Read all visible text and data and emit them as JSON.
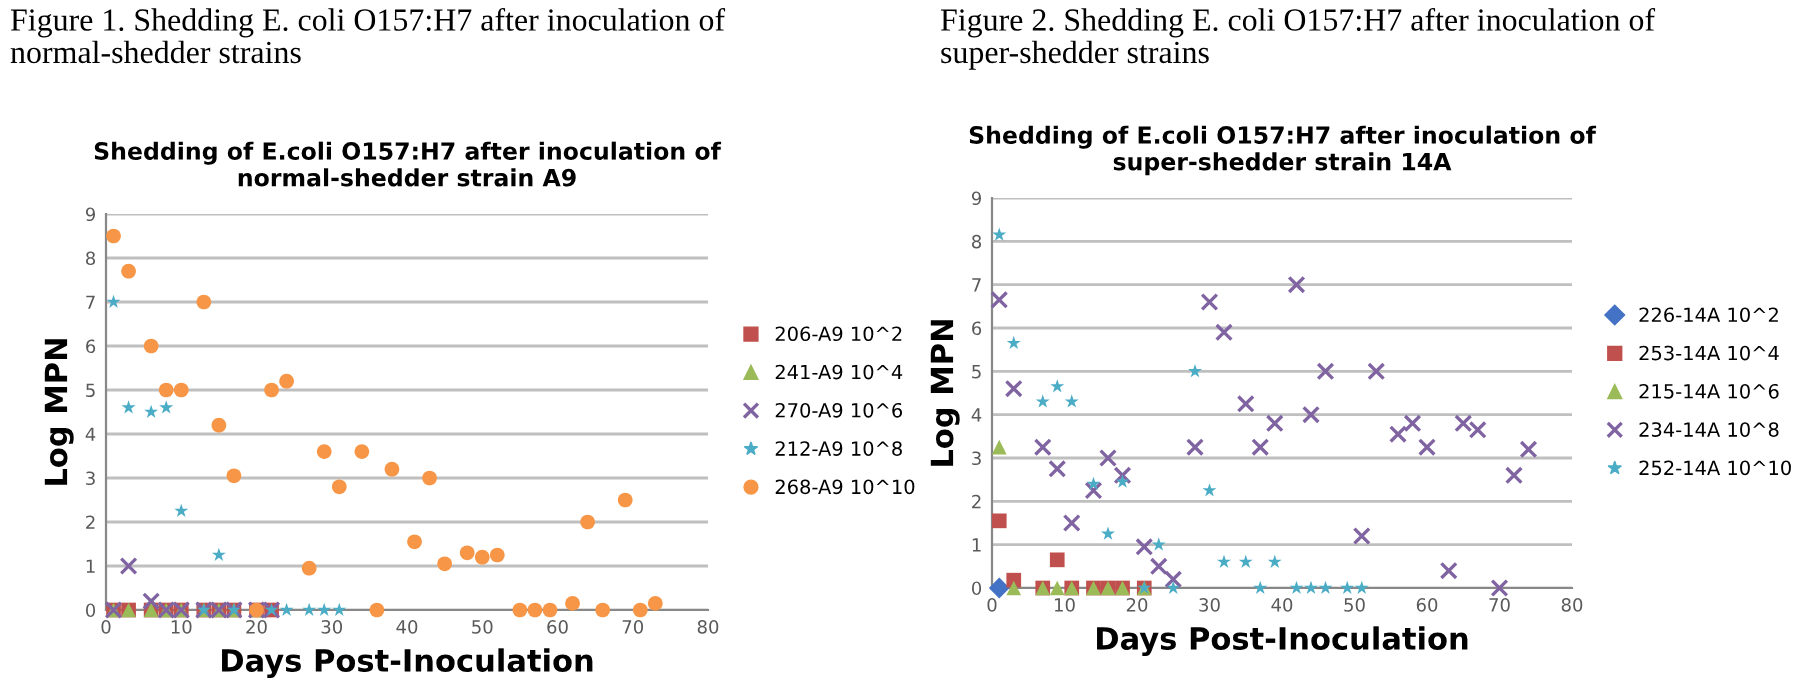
{
  "chart_data": [
    {
      "type": "scatter",
      "title": "Shedding of E.coli O157:H7 after inoculation of\nnormal-shedder strain A9",
      "annotations": [
        "Figure 1. Shedding E. coli O157:H7 after inoculation of\nnormal-shedder strains"
      ],
      "xlabel": "Days Post-Inoculation",
      "ylabel": "Log MPN",
      "xlim": [
        0,
        80
      ],
      "xticks": [
        0,
        10,
        20,
        30,
        40,
        50,
        60,
        70,
        80
      ],
      "ylim": [
        0,
        9
      ],
      "yticks": [
        0,
        1,
        2,
        3,
        4,
        5,
        6,
        7,
        8,
        9
      ],
      "grid": "y",
      "legend": "right",
      "series": [
        {
          "name": "206-A9 10^2",
          "color": "#c0504d",
          "marker": "square",
          "x": [
            1,
            3,
            6,
            8,
            10,
            13,
            15,
            17,
            20,
            22
          ],
          "values": [
            0,
            0,
            0,
            0,
            0,
            0,
            0,
            0,
            0,
            0
          ]
        },
        {
          "name": "241-A9 10^4",
          "color": "#9bbb59",
          "marker": "triangle",
          "x": [
            1,
            3,
            6,
            8,
            10,
            13,
            15,
            17,
            20
          ],
          "values": [
            0,
            0,
            0,
            0,
            0,
            0,
            0,
            0,
            0
          ]
        },
        {
          "name": "270-A9 10^6",
          "color": "#8064a2",
          "marker": "cross",
          "x": [
            1,
            3,
            6,
            8,
            10,
            13,
            15,
            17,
            20,
            22
          ],
          "values": [
            0,
            1.0,
            0.2,
            0,
            0,
            0,
            0,
            0,
            0,
            0
          ]
        },
        {
          "name": "212-A9 10^8",
          "color": "#4bacc6",
          "marker": "star",
          "x": [
            1,
            3,
            6,
            8,
            10,
            13,
            15,
            17,
            22,
            24,
            27,
            29,
            31
          ],
          "values": [
            7.0,
            4.6,
            4.5,
            4.6,
            2.25,
            0,
            1.25,
            0,
            0,
            0,
            0,
            0,
            0
          ]
        },
        {
          "name": "268-A9 10^10",
          "color": "#f79646",
          "marker": "circle",
          "x": [
            1,
            3,
            6,
            8,
            10,
            13,
            15,
            17,
            20,
            22,
            24,
            27,
            29,
            31,
            34,
            36,
            38,
            41,
            43,
            45,
            48,
            50,
            52,
            55,
            57,
            59,
            62,
            64,
            66,
            69,
            71,
            73
          ],
          "values": [
            8.5,
            7.7,
            6.0,
            5.0,
            5.0,
            7.0,
            4.2,
            3.05,
            0,
            5.0,
            5.2,
            0.95,
            3.6,
            2.8,
            3.6,
            0,
            3.2,
            1.55,
            3.0,
            1.05,
            1.3,
            1.2,
            1.25,
            0,
            0,
            0,
            0.15,
            2.0,
            0,
            2.5,
            0,
            0.15
          ]
        }
      ]
    },
    {
      "type": "scatter",
      "title": "Shedding of E.coli O157:H7 after inoculation of\nsuper-shedder strain 14A",
      "annotations": [
        "Figure 2. Shedding E. coli O157:H7 after inoculation of\nsuper-shedder strains"
      ],
      "xlabel": "Days Post-Inoculation",
      "ylabel": "Log MPN",
      "xlim": [
        0,
        80
      ],
      "xticks": [
        0,
        10,
        20,
        30,
        40,
        50,
        60,
        70,
        80
      ],
      "ylim": [
        0,
        9
      ],
      "yticks": [
        0,
        1,
        2,
        3,
        4,
        5,
        6,
        7,
        8,
        9
      ],
      "grid": "y",
      "legend": "right",
      "series": [
        {
          "name": "226-14A 10^2",
          "color": "#4472c4",
          "marker": "diamond",
          "x": [
            1
          ],
          "values": [
            0
          ]
        },
        {
          "name": "253-14A 10^4",
          "color": "#c0504d",
          "marker": "square",
          "x": [
            1,
            3,
            7,
            9,
            11,
            14,
            16,
            18,
            21
          ],
          "values": [
            1.55,
            0.18,
            0,
            0.65,
            0,
            0,
            0,
            0,
            0
          ]
        },
        {
          "name": "215-14A 10^6",
          "color": "#9bbb59",
          "marker": "triangle",
          "x": [
            1,
            3,
            7,
            9,
            11,
            14,
            16,
            18,
            21
          ],
          "values": [
            3.25,
            0,
            0,
            0,
            0,
            0,
            0,
            0,
            0
          ]
        },
        {
          "name": "234-14A 10^8",
          "color": "#8064a2",
          "marker": "cross",
          "x": [
            1,
            3,
            7,
            9,
            11,
            14,
            16,
            18,
            21,
            23,
            25,
            28,
            30,
            32,
            35,
            37,
            39,
            42,
            44,
            46,
            51,
            53,
            56,
            58,
            60,
            63,
            65,
            67,
            70,
            72,
            74
          ],
          "values": [
            6.65,
            4.6,
            3.25,
            2.75,
            1.5,
            2.25,
            3.0,
            2.6,
            0.95,
            0.5,
            0.2,
            3.25,
            6.6,
            5.9,
            4.25,
            3.25,
            3.8,
            7.0,
            4.0,
            5.0,
            1.2,
            5.0,
            3.55,
            3.8,
            3.25,
            0.4,
            3.8,
            3.65,
            0,
            2.6,
            3.2
          ]
        },
        {
          "name": "252-14A 10^10",
          "color": "#4bacc6",
          "marker": "star",
          "x": [
            1,
            3,
            7,
            9,
            11,
            14,
            16,
            18,
            21,
            23,
            25,
            28,
            30,
            32,
            35,
            37,
            39,
            42,
            44,
            46,
            49,
            51
          ],
          "values": [
            8.15,
            5.65,
            4.3,
            4.65,
            4.3,
            2.4,
            1.25,
            2.45,
            0,
            1.0,
            0,
            5.0,
            2.25,
            0.6,
            0.6,
            0,
            0.6,
            0,
            0,
            0,
            0,
            0
          ]
        }
      ]
    }
  ]
}
